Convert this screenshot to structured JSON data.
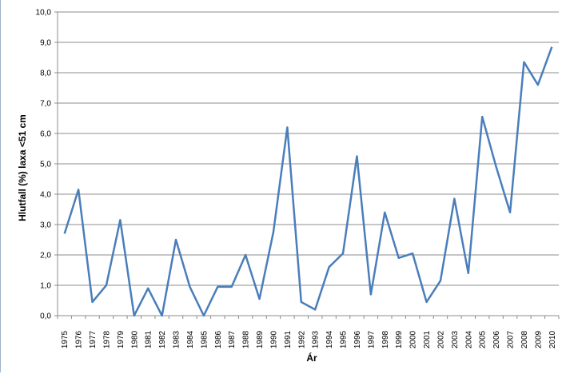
{
  "chart_data": {
    "type": "line",
    "title": "",
    "xlabel": "Ár",
    "ylabel": "Hlutfall (%) laxa <51 cm",
    "ylim": [
      0,
      10
    ],
    "yticks": [
      "0,0",
      "1,0",
      "2,0",
      "3,0",
      "4,0",
      "5,0",
      "6,0",
      "7,0",
      "8,0",
      "9,0",
      "10,0"
    ],
    "grid": true,
    "legend": "none",
    "line_color": "#4a7ebb",
    "categories": [
      "1975",
      "1976",
      "1977",
      "1978",
      "1979",
      "1980",
      "1981",
      "1982",
      "1983",
      "1984",
      "1985",
      "1986",
      "1987",
      "1988",
      "1989",
      "1990",
      "1991",
      "1992",
      "1993",
      "1994",
      "1995",
      "1996",
      "1997",
      "1998",
      "1999",
      "2000",
      "2001",
      "2002",
      "2003",
      "2004",
      "2005",
      "2006",
      "2007",
      "2008",
      "2009",
      "2010"
    ],
    "values": [
      2.7,
      4.15,
      0.45,
      1.0,
      3.15,
      0.0,
      0.9,
      0.0,
      2.5,
      0.95,
      0.0,
      0.95,
      0.95,
      2.0,
      0.55,
      2.75,
      6.2,
      0.45,
      0.2,
      1.6,
      2.05,
      5.25,
      0.7,
      3.4,
      1.9,
      2.05,
      0.45,
      1.15,
      3.85,
      1.4,
      6.55,
      4.9,
      3.4,
      8.35,
      7.6,
      8.85
    ]
  }
}
